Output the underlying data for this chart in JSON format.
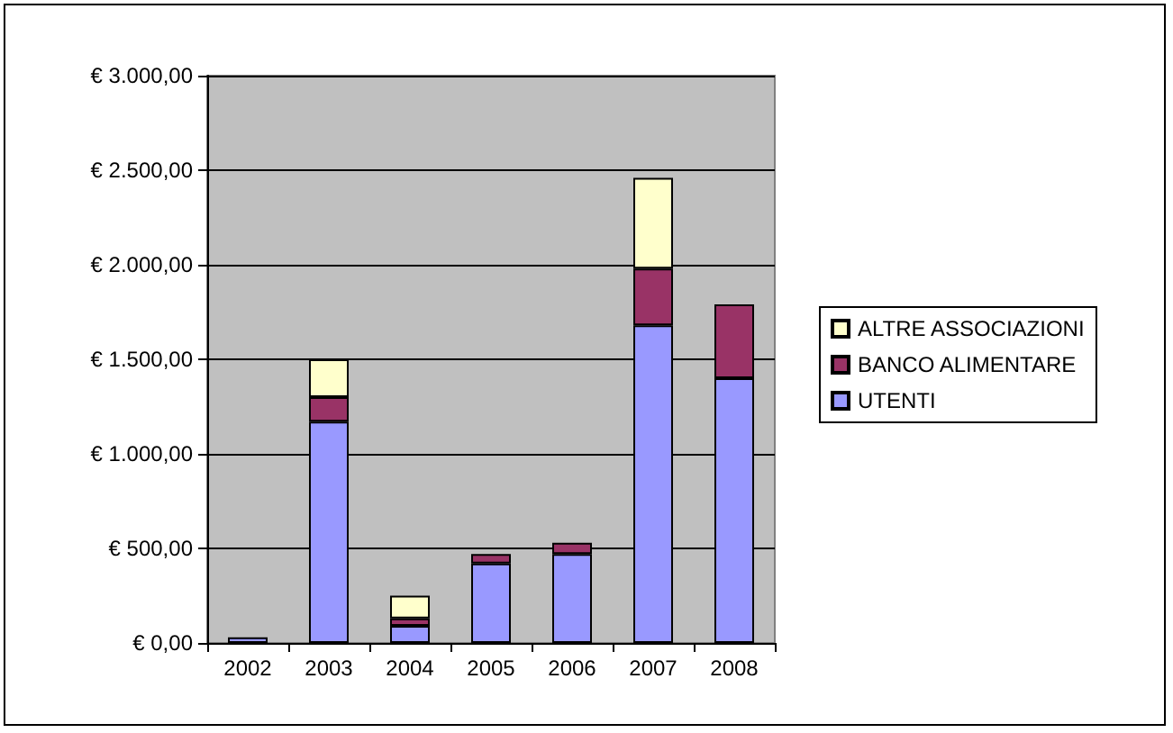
{
  "chart_data": {
    "type": "bar",
    "stacked": true,
    "categories": [
      "2002",
      "2003",
      "2004",
      "2005",
      "2006",
      "2007",
      "2008"
    ],
    "series": [
      {
        "name": "UTENTI",
        "color": "#9999ff",
        "values": [
          30,
          1170,
          90,
          420,
          470,
          1680,
          1400
        ]
      },
      {
        "name": "BANCO ALIMENTARE",
        "color": "#993366",
        "values": [
          null,
          130,
          40,
          50,
          60,
          300,
          390
        ]
      },
      {
        "name": "ALTRE ASSOCIAZIONI",
        "color": "#ffffcc",
        "values": [
          null,
          200,
          120,
          null,
          null,
          480,
          null
        ]
      }
    ],
    "ylim": [
      0,
      3000
    ],
    "yticks": [
      {
        "value": 0,
        "label": "€ 0,00"
      },
      {
        "value": 500,
        "label": "€ 500,00"
      },
      {
        "value": 1000,
        "label": "€ 1.000,00"
      },
      {
        "value": 1500,
        "label": "€ 1.500,00"
      },
      {
        "value": 2000,
        "label": "€ 2.000,00"
      },
      {
        "value": 2500,
        "label": "€ 2.500,00"
      },
      {
        "value": 3000,
        "label": "€ 3.000,00"
      }
    ],
    "grid": "y",
    "legend": "right"
  }
}
